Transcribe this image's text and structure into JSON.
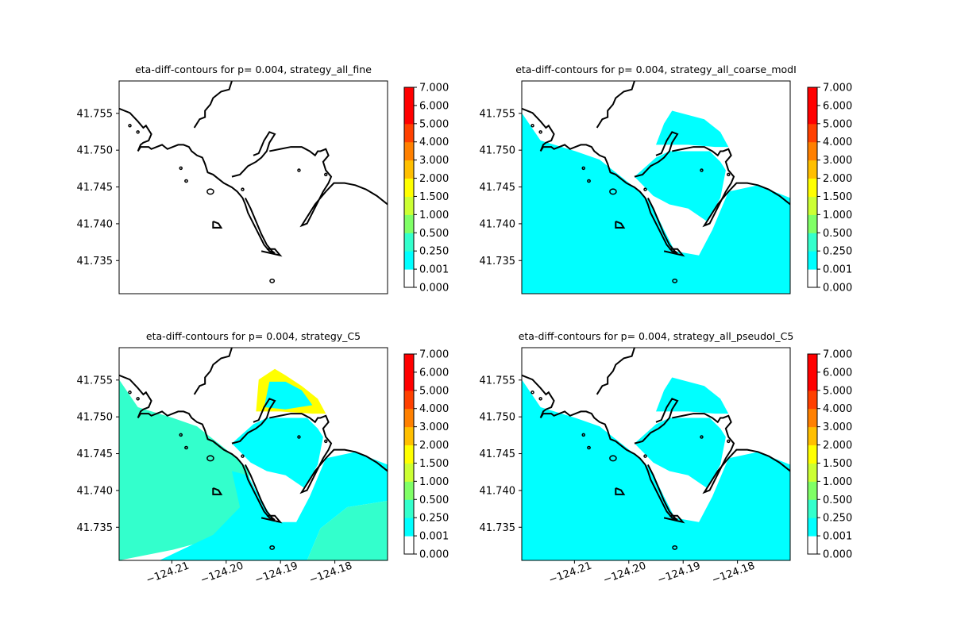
{
  "chart_data": [
    {
      "type": "contour",
      "title": "eta-diff-contours for p= 0.004, strategy_all_fine",
      "xlabel": "",
      "ylabel": "",
      "xlim": [
        -124.2197,
        -124.1703
      ],
      "ylim": [
        41.7305,
        41.7594
      ],
      "x_ticks": [],
      "y_ticks": [
        41.755,
        41.75,
        41.745,
        41.74,
        41.735
      ],
      "y_tick_labels": [
        "41.755",
        "41.750",
        "41.745",
        "41.740",
        "41.735"
      ],
      "fill": "none",
      "colorbar": {
        "levels": [
          0.0,
          0.001,
          0.25,
          0.5,
          1.0,
          1.5,
          2.0,
          3.0,
          4.0,
          5.0,
          6.0,
          7.0
        ],
        "labels": [
          "0.000",
          "0.001",
          "0.250",
          "0.500",
          "1.000",
          "1.500",
          "2.000",
          "3.000",
          "4.000",
          "5.000",
          "6.000",
          "7.000"
        ]
      }
    },
    {
      "type": "contour",
      "title": "eta-diff-contours for p= 0.004, strategy_all_coarse_modI",
      "xlabel": "",
      "ylabel": "",
      "xlim": [
        -124.2197,
        -124.1703
      ],
      "ylim": [
        41.7305,
        41.7594
      ],
      "x_ticks": [],
      "y_ticks": [
        41.755,
        41.75,
        41.745,
        41.74,
        41.735
      ],
      "y_tick_labels": [
        "41.755",
        "41.750",
        "41.745",
        "41.740",
        "41.735"
      ],
      "fill": "cyan",
      "colorbar": {
        "levels": [
          0.0,
          0.001,
          0.25,
          0.5,
          1.0,
          1.5,
          2.0,
          3.0,
          4.0,
          5.0,
          6.0,
          7.0
        ],
        "labels": [
          "0.000",
          "0.001",
          "0.250",
          "0.500",
          "1.000",
          "1.500",
          "2.000",
          "3.000",
          "4.000",
          "5.000",
          "6.000",
          "7.000"
        ]
      }
    },
    {
      "type": "contour",
      "title": "eta-diff-contours for p= 0.004, strategy_C5",
      "xlabel": "",
      "ylabel": "",
      "xlim": [
        -124.2197,
        -124.1703
      ],
      "ylim": [
        41.7305,
        41.7594
      ],
      "x_ticks": [
        -124.21,
        -124.2,
        -124.19,
        -124.18
      ],
      "x_tick_labels": [
        "−124.21",
        "−124.20",
        "−124.19",
        "−124.18"
      ],
      "y_ticks": [
        41.755,
        41.75,
        41.745,
        41.74,
        41.735
      ],
      "y_tick_labels": [
        "41.755",
        "41.750",
        "41.745",
        "41.740",
        "41.735"
      ],
      "fill": "teal",
      "colorbar": {
        "levels": [
          0.0,
          0.001,
          0.25,
          0.5,
          1.0,
          1.5,
          2.0,
          3.0,
          4.0,
          5.0,
          6.0,
          7.0
        ],
        "labels": [
          "0.000",
          "0.001",
          "0.250",
          "0.500",
          "1.000",
          "1.500",
          "2.000",
          "3.000",
          "4.000",
          "5.000",
          "6.000",
          "7.000"
        ]
      }
    },
    {
      "type": "contour",
      "title": "eta-diff-contours for p= 0.004, strategy_all_pseudoI_C5",
      "xlabel": "",
      "ylabel": "",
      "xlim": [
        -124.2197,
        -124.1703
      ],
      "ylim": [
        41.7305,
        41.7594
      ],
      "x_ticks": [
        -124.21,
        -124.2,
        -124.19,
        -124.18
      ],
      "x_tick_labels": [
        "−124.21",
        "−124.20",
        "−124.19",
        "−124.18"
      ],
      "y_ticks": [
        41.755,
        41.75,
        41.745,
        41.74,
        41.735
      ],
      "y_tick_labels": [
        "41.755",
        "41.750",
        "41.745",
        "41.740",
        "41.735"
      ],
      "fill": "cyan",
      "colorbar": {
        "levels": [
          0.0,
          0.001,
          0.25,
          0.5,
          1.0,
          1.5,
          2.0,
          3.0,
          4.0,
          5.0,
          6.0,
          7.0
        ],
        "labels": [
          "0.000",
          "0.001",
          "0.250",
          "0.500",
          "1.000",
          "1.500",
          "2.000",
          "3.000",
          "4.000",
          "5.000",
          "6.000",
          "7.000"
        ]
      }
    }
  ],
  "colors": {
    "level_bands": [
      "#ffffff",
      "#00ffff",
      "#33ffcc",
      "#80ff66",
      "#ccff33",
      "#ffff00",
      "#ffbf00",
      "#ff8000",
      "#ff4000",
      "#ff0000",
      "#ff0000"
    ],
    "coast": "#000000"
  }
}
